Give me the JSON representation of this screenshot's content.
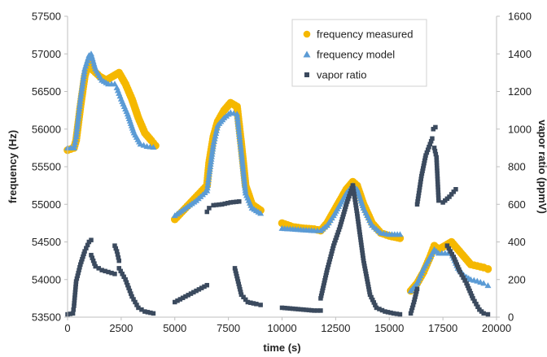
{
  "chart_data": {
    "type": "scatter",
    "xlabel": "time (s)",
    "ylabel_left": "frequency (Hz)",
    "ylabel_right": "vapor ratio (ppmV)",
    "xlim": [
      0,
      20000
    ],
    "ylim_left": [
      53500,
      57500
    ],
    "ylim_right": [
      0,
      1600
    ],
    "x_ticks": [
      0,
      2500,
      5000,
      7500,
      10000,
      12500,
      15000,
      17500,
      20000
    ],
    "x_tick_labels": [
      "0",
      "2500",
      "5000",
      "7500",
      "10000",
      "12500",
      "15000",
      "17500",
      "20000"
    ],
    "y_left_ticks": [
      53500,
      54000,
      54500,
      55000,
      55500,
      56000,
      56500,
      57000,
      57500
    ],
    "y_left_tick_labels": [
      "53500",
      "54000",
      "54500",
      "55000",
      "55500",
      "56000",
      "56500",
      "57000",
      "57500"
    ],
    "y_right_ticks": [
      0,
      200,
      400,
      600,
      800,
      1000,
      1200,
      1400,
      1600
    ],
    "y_right_tick_labels": [
      "0",
      "200",
      "400",
      "600",
      "800",
      "1000",
      "1200",
      "1400",
      "1600"
    ],
    "grid": false,
    "legend_position": "top-right",
    "series": [
      {
        "name": "frequency measured",
        "axis": "left",
        "color": "#F5B800",
        "marker": "circle",
        "segments": [
          {
            "x": [
              0,
              300,
              400,
              600,
              800,
              1000,
              1200,
              1500,
              1800,
              2100,
              2400,
              2700,
              3000,
              3300,
              3600,
              3900,
              4100
            ],
            "y": [
              55720,
              55750,
              55850,
              56300,
              56700,
              56900,
              56780,
              56700,
              56650,
              56700,
              56750,
              56600,
              56400,
              56150,
              55950,
              55850,
              55780
            ]
          },
          {
            "x": [
              5000,
              5500,
              6000,
              6500,
              6600,
              6800,
              7000,
              7300,
              7600,
              7900,
              8100,
              8300,
              8600,
              9000
            ],
            "y": [
              54800,
              54950,
              55100,
              55250,
              55550,
              55900,
              56100,
              56250,
              56350,
              56300,
              55800,
              55250,
              55000,
              54920
            ]
          },
          {
            "x": [
              10000,
              10500,
              11000,
              11500,
              11800,
              12100,
              12400,
              12700,
              13000,
              13300,
              13500,
              13800,
              14200,
              14600,
              15000,
              15500
            ],
            "y": [
              54750,
              54700,
              54680,
              54670,
              54650,
              54750,
              54900,
              55050,
              55200,
              55300,
              55250,
              55000,
              54750,
              54620,
              54580,
              54550
            ]
          },
          {
            "x": [
              16000,
              16300,
              16600,
              16900,
              17100,
              17300,
              17600,
              17900,
              18200,
              18500,
              18800,
              19100,
              19400,
              19600
            ],
            "y": [
              53850,
              53950,
              54100,
              54300,
              54450,
              54400,
              54450,
              54500,
              54400,
              54300,
              54200,
              54180,
              54160,
              54140
            ]
          }
        ]
      },
      {
        "name": "frequency model",
        "axis": "left",
        "color": "#5B9BD5",
        "marker": "triangle",
        "segments": [
          {
            "x": [
              0,
              300,
              400,
              600,
              800,
              1000,
              1100,
              1300,
              1600,
              1900,
              2200,
              2300,
              2500,
              2800,
              3100,
              3400,
              3700,
              4000
            ],
            "y": [
              55750,
              55750,
              55900,
              56400,
              56800,
              56980,
              57000,
              56800,
              56650,
              56600,
              56600,
              56550,
              56400,
              56200,
              55950,
              55800,
              55770,
              55760
            ]
          },
          {
            "x": [
              5000,
              5500,
              6000,
              6500,
              6600,
              6800,
              7000,
              7300,
              7600,
              7900,
              8100,
              8300,
              8600,
              9000
            ],
            "y": [
              54850,
              54950,
              55050,
              55180,
              55400,
              55800,
              56050,
              56150,
              56220,
              56200,
              55700,
              55150,
              54950,
              54880
            ]
          },
          {
            "x": [
              10000,
              10500,
              11000,
              11500,
              11800,
              12100,
              12400,
              12700,
              13000,
              13300,
              13500,
              13800,
              14200,
              14600,
              15000,
              15500
            ],
            "y": [
              54680,
              54670,
              54660,
              54650,
              54650,
              54720,
              54850,
              55000,
              55150,
              55250,
              55200,
              54950,
              54720,
              54620,
              54600,
              54600
            ]
          },
          {
            "x": [
              16000,
              16300,
              16600,
              16900,
              17100,
              17300,
              17600,
              17900,
              18200,
              18500,
              18800,
              19100,
              19400,
              19600
            ],
            "y": [
              53850,
              53950,
              54150,
              54300,
              54400,
              54350,
              54350,
              54350,
              54150,
              54050,
              54000,
              53980,
              53950,
              53920
            ]
          }
        ]
      },
      {
        "name": "vapor ratio",
        "axis": "right",
        "color": "#3B4A5E",
        "marker": "square",
        "segments": [
          {
            "x": [
              0,
              250,
              300,
              400,
              600,
              800,
              1000,
              1100
            ],
            "y": [
              15,
              20,
              60,
              190,
              280,
              350,
              400,
              410
            ]
          },
          {
            "x": [
              1100,
              1300,
              1600,
              1900,
              2200
            ],
            "y": [
              330,
              270,
              250,
              240,
              230
            ]
          },
          {
            "x": [
              2200,
              2300,
              2400
            ],
            "y": [
              380,
              350,
              300
            ]
          },
          {
            "x": [
              2400,
              2700,
              3000,
              3300,
              3600,
              4000
            ],
            "y": [
              260,
              200,
              110,
              50,
              30,
              20
            ]
          },
          {
            "x": [
              5000,
              5500,
              6000,
              6500
            ],
            "y": [
              80,
              110,
              140,
              170
            ]
          },
          {
            "x": [
              6500,
              6600,
              6800,
              7200,
              7600,
              8000
            ],
            "y": [
              560,
              580,
              595,
              600,
              610,
              615
            ]
          },
          {
            "x": [
              7800,
              8100,
              8400,
              8800,
              9000
            ],
            "y": [
              260,
              120,
              80,
              70,
              65
            ]
          },
          {
            "x": [
              10000,
              10500,
              11000,
              11500,
              11800
            ],
            "y": [
              50,
              45,
              40,
              35,
              35
            ]
          },
          {
            "x": [
              11800,
              12100,
              12400,
              12700,
              13000,
              13300
            ],
            "y": [
              100,
              250,
              380,
              480,
              600,
              700
            ]
          },
          {
            "x": [
              13300,
              13500,
              13800,
              14100,
              14400,
              14800,
              15200,
              15500
            ],
            "y": [
              700,
              550,
              300,
              120,
              50,
              30,
              20,
              15
            ]
          },
          {
            "x": [
              16000,
              16150,
              16300
            ],
            "y": [
              20,
              80,
              150
            ]
          },
          {
            "x": [
              16300,
              16500,
              16700,
              16900,
              17000
            ],
            "y": [
              600,
              750,
              860,
              920,
              950
            ]
          },
          {
            "x": [
              17050,
              17150
            ],
            "y": [
              1000,
              1010
            ]
          },
          {
            "x": [
              17100,
              17200,
              17300,
              17500,
              17800,
              18100
            ],
            "y": [
              900,
              850,
              620,
              610,
              640,
              680
            ]
          },
          {
            "x": [
              17700,
              18000,
              18300,
              18600,
              18900,
              19200,
              19400,
              19600
            ],
            "y": [
              380,
              320,
              240,
              180,
              100,
              40,
              20,
              15
            ]
          }
        ]
      }
    ]
  }
}
